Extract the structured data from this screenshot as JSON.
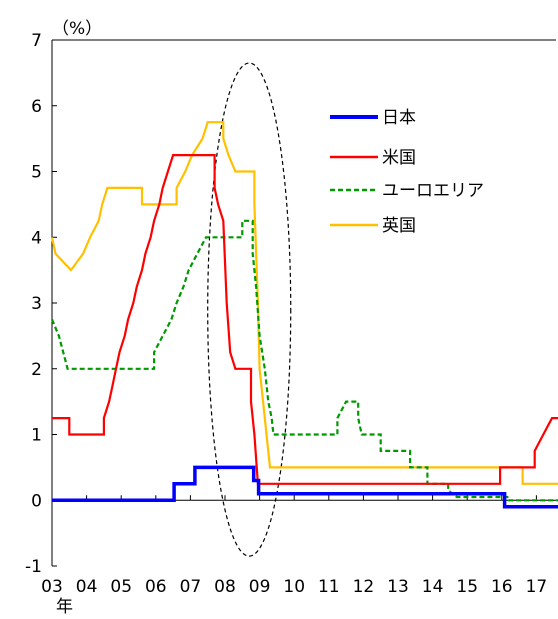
{
  "chart_data": {
    "type": "line",
    "title": "",
    "ylabel": "（%）",
    "xlabel": "年",
    "ylim": [
      -1,
      7
    ],
    "xlim": [
      2003,
      2017.7
    ],
    "y_ticks": [
      "-1",
      "0",
      "1",
      "2",
      "3",
      "4",
      "5",
      "6",
      "7"
    ],
    "x_ticks": [
      "03",
      "04",
      "05",
      "06",
      "07",
      "08",
      "09",
      "10",
      "11",
      "12",
      "13",
      "14",
      "15",
      "16",
      "17"
    ],
    "legend_position": "top-right",
    "grid": false,
    "annotation": "dashed ellipse around 2007-2009",
    "series": [
      {
        "name": "日本",
        "color": "#0000ff",
        "style": "solid",
        "points": [
          [
            2003,
            0
          ],
          [
            2006.53,
            0
          ],
          [
            2006.53,
            0.25
          ],
          [
            2007.13,
            0.25
          ],
          [
            2007.13,
            0.5
          ],
          [
            2008.83,
            0.5
          ],
          [
            2008.83,
            0.3
          ],
          [
            2008.97,
            0.3
          ],
          [
            2008.97,
            0.1
          ],
          [
            2016.08,
            0.1
          ],
          [
            2016.08,
            -0.1
          ],
          [
            2017.7,
            -0.1
          ]
        ]
      },
      {
        "name": "米国",
        "color": "#ff0000",
        "style": "solid",
        "points": [
          [
            2003,
            1.25
          ],
          [
            2003.5,
            1.25
          ],
          [
            2003.5,
            1.0
          ],
          [
            2004.5,
            1.0
          ],
          [
            2004.5,
            1.25
          ],
          [
            2004.65,
            1.5
          ],
          [
            2004.75,
            1.75
          ],
          [
            2004.85,
            2.0
          ],
          [
            2004.95,
            2.25
          ],
          [
            2005.1,
            2.5
          ],
          [
            2005.2,
            2.75
          ],
          [
            2005.35,
            3.0
          ],
          [
            2005.45,
            3.25
          ],
          [
            2005.6,
            3.5
          ],
          [
            2005.7,
            3.75
          ],
          [
            2005.85,
            4.0
          ],
          [
            2005.95,
            4.25
          ],
          [
            2006.1,
            4.5
          ],
          [
            2006.2,
            4.75
          ],
          [
            2006.35,
            5.0
          ],
          [
            2006.5,
            5.25
          ],
          [
            2007.7,
            5.25
          ],
          [
            2007.7,
            4.75
          ],
          [
            2007.8,
            4.5
          ],
          [
            2007.95,
            4.25
          ],
          [
            2008.05,
            3.0
          ],
          [
            2008.15,
            2.25
          ],
          [
            2008.3,
            2.0
          ],
          [
            2008.75,
            2.0
          ],
          [
            2008.75,
            1.5
          ],
          [
            2008.85,
            1.0
          ],
          [
            2008.95,
            0.25
          ],
          [
            2015.95,
            0.25
          ],
          [
            2015.95,
            0.5
          ],
          [
            2016.95,
            0.5
          ],
          [
            2016.95,
            0.75
          ],
          [
            2017.2,
            1.0
          ],
          [
            2017.45,
            1.25
          ],
          [
            2017.7,
            1.25
          ]
        ]
      },
      {
        "name": "ユーロエリア",
        "color": "#009900",
        "style": "dashed",
        "points": [
          [
            2003,
            2.75
          ],
          [
            2003.2,
            2.5
          ],
          [
            2003.45,
            2.0
          ],
          [
            2005.95,
            2.0
          ],
          [
            2005.95,
            2.25
          ],
          [
            2006.2,
            2.5
          ],
          [
            2006.45,
            2.75
          ],
          [
            2006.6,
            3.0
          ],
          [
            2006.8,
            3.25
          ],
          [
            2006.95,
            3.5
          ],
          [
            2007.2,
            3.75
          ],
          [
            2007.45,
            4.0
          ],
          [
            2008.5,
            4.0
          ],
          [
            2008.5,
            4.25
          ],
          [
            2008.8,
            4.25
          ],
          [
            2008.8,
            3.75
          ],
          [
            2008.9,
            3.25
          ],
          [
            2009.0,
            2.5
          ],
          [
            2009.15,
            2.0
          ],
          [
            2009.25,
            1.5
          ],
          [
            2009.35,
            1.25
          ],
          [
            2009.4,
            1.0
          ],
          [
            2011.25,
            1.0
          ],
          [
            2011.25,
            1.25
          ],
          [
            2011.5,
            1.5
          ],
          [
            2011.85,
            1.5
          ],
          [
            2011.85,
            1.25
          ],
          [
            2011.95,
            1.0
          ],
          [
            2012.5,
            1.0
          ],
          [
            2012.5,
            0.75
          ],
          [
            2013.35,
            0.75
          ],
          [
            2013.35,
            0.5
          ],
          [
            2013.85,
            0.5
          ],
          [
            2013.85,
            0.25
          ],
          [
            2014.45,
            0.25
          ],
          [
            2014.45,
            0.15
          ],
          [
            2014.7,
            0.05
          ],
          [
            2016.2,
            0.05
          ],
          [
            2016.2,
            0.0
          ],
          [
            2017.7,
            0.0
          ]
        ]
      },
      {
        "name": "英国",
        "color": "#ffc000",
        "style": "solid",
        "points": [
          [
            2003,
            4.0
          ],
          [
            2003.1,
            3.75
          ],
          [
            2003.55,
            3.5
          ],
          [
            2003.9,
            3.75
          ],
          [
            2004.1,
            4.0
          ],
          [
            2004.35,
            4.25
          ],
          [
            2004.45,
            4.5
          ],
          [
            2004.6,
            4.75
          ],
          [
            2005.6,
            4.75
          ],
          [
            2005.6,
            4.5
          ],
          [
            2006.6,
            4.5
          ],
          [
            2006.6,
            4.75
          ],
          [
            2006.85,
            5.0
          ],
          [
            2007.05,
            5.25
          ],
          [
            2007.35,
            5.5
          ],
          [
            2007.5,
            5.75
          ],
          [
            2007.95,
            5.75
          ],
          [
            2007.95,
            5.5
          ],
          [
            2008.1,
            5.25
          ],
          [
            2008.3,
            5.0
          ],
          [
            2008.85,
            5.0
          ],
          [
            2008.85,
            4.5
          ],
          [
            2008.95,
            3.0
          ],
          [
            2009.0,
            2.0
          ],
          [
            2009.1,
            1.5
          ],
          [
            2009.2,
            1.0
          ],
          [
            2009.3,
            0.5
          ],
          [
            2016.6,
            0.5
          ],
          [
            2016.6,
            0.25
          ],
          [
            2017.7,
            0.25
          ]
        ]
      }
    ]
  }
}
